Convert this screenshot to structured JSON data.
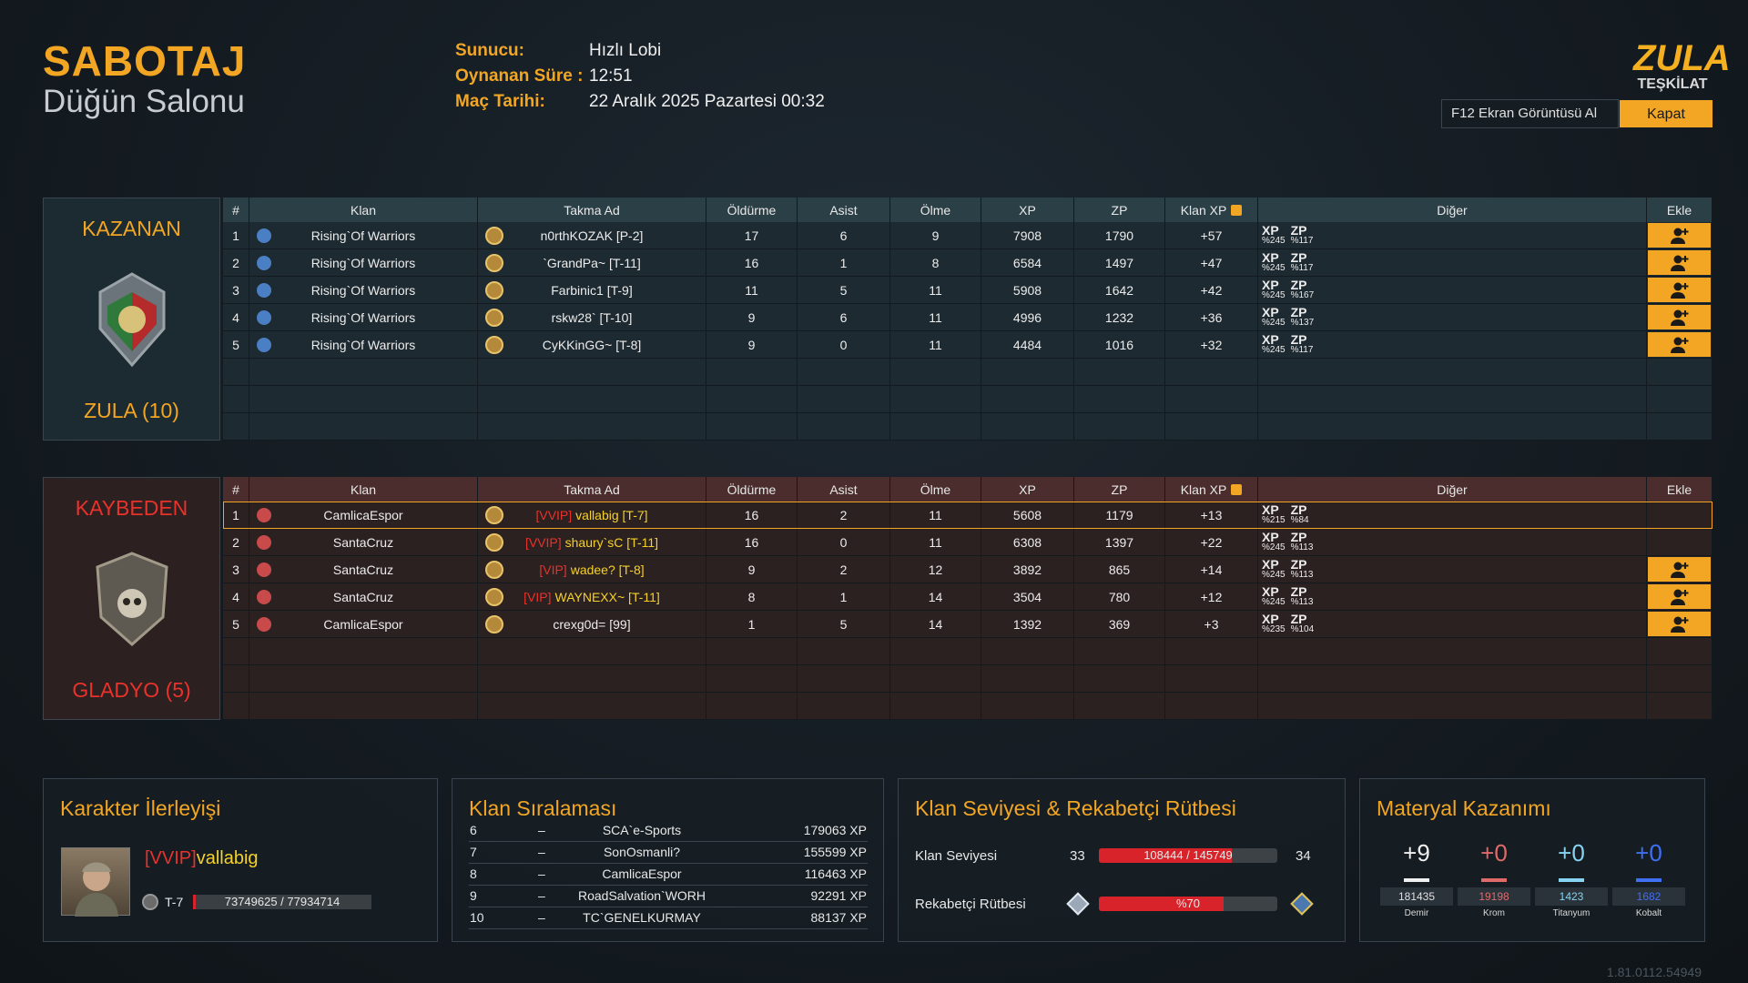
{
  "header": {
    "mode": "SABOTAJ",
    "map": "Düğün Salonu",
    "info": [
      {
        "label": "Sunucu:",
        "value": "Hızlı Lobi"
      },
      {
        "label": "Oynanan Süre :",
        "value": "12:51"
      },
      {
        "label": "Maç Tarihi:",
        "value": "22 Aralık 2025 Pazartesi 00:32"
      }
    ],
    "logo": {
      "top": "ZULA",
      "bottom": "TEŞKİLAT"
    },
    "screenshot_button": "F12 Ekran Görüntüsü Al",
    "close_button": "Kapat"
  },
  "scoreboard": {
    "columns": [
      "#",
      "Klan",
      "Takma Ad",
      "Öldürme",
      "Asist",
      "Ölme",
      "XP",
      "ZP",
      "Klan XP",
      "Diğer",
      "Ekle"
    ],
    "bonus_labels": [
      "XP",
      "ZP"
    ],
    "teams": [
      {
        "result": "KAZANAN",
        "clan": "ZULA (10)",
        "color": "#f2a623",
        "header_bg": "#2b3f47",
        "row_bg": "#1d2a31",
        "box_bg": "#1c2a31",
        "rows": [
          {
            "rank": 1,
            "clan": "Rising`Of Warriors",
            "nick": "n0rthKOZAK [P-2]",
            "kills": 17,
            "assists": 6,
            "deaths": 9,
            "xp": 7908,
            "zp": 1790,
            "clan_xp": "+57",
            "bonus": [
              "%245",
              "%117"
            ],
            "add": true
          },
          {
            "rank": 2,
            "clan": "Rising`Of Warriors",
            "nick": "`GrandPa~ [T-11]",
            "kills": 16,
            "assists": 1,
            "deaths": 8,
            "xp": 6584,
            "zp": 1497,
            "clan_xp": "+47",
            "bonus": [
              "%245",
              "%117"
            ],
            "add": true
          },
          {
            "rank": 3,
            "clan": "Rising`Of Warriors",
            "nick": "Farbinic1 [T-9]",
            "kills": 11,
            "assists": 5,
            "deaths": 11,
            "xp": 5908,
            "zp": 1642,
            "clan_xp": "+42",
            "bonus": [
              "%245",
              "%167"
            ],
            "add": true
          },
          {
            "rank": 4,
            "clan": "Rising`Of Warriors",
            "nick": "rskw28` [T-10]",
            "kills": 9,
            "assists": 6,
            "deaths": 11,
            "xp": 4996,
            "zp": 1232,
            "clan_xp": "+36",
            "bonus": [
              "%245",
              "%137"
            ],
            "add": true
          },
          {
            "rank": 5,
            "clan": "Rising`Of Warriors",
            "nick": "CyKKinGG~ [T-8]",
            "kills": 9,
            "assists": 0,
            "deaths": 11,
            "xp": 4484,
            "zp": 1016,
            "clan_xp": "+32",
            "bonus": [
              "%245",
              "%117"
            ],
            "add": true
          }
        ]
      },
      {
        "result": "KAYBEDEN",
        "clan": "GLADYO (5)",
        "color": "#e8322b",
        "header_bg": "#4a2d2c",
        "row_bg": "#2c2121",
        "box_bg": "#2c2020",
        "rows": [
          {
            "rank": 1,
            "clan": "CamlicaEspor",
            "vip": "[VVIP]",
            "nick": "vallabig [T-7]",
            "kills": 16,
            "assists": 2,
            "deaths": 11,
            "xp": 5608,
            "zp": 1179,
            "clan_xp": "+13",
            "bonus": [
              "%215",
              "%84"
            ],
            "add": false,
            "highlight": true
          },
          {
            "rank": 2,
            "clan": "SantaCruz",
            "vip": "[VVIP]",
            "nick": "shaury`sC [T-11]",
            "kills": 16,
            "assists": 0,
            "deaths": 11,
            "xp": 6308,
            "zp": 1397,
            "clan_xp": "+22",
            "bonus": [
              "%245",
              "%113"
            ],
            "add": false
          },
          {
            "rank": 3,
            "clan": "SantaCruz",
            "vip": "[VIP]",
            "nick": "wadee? [T-8]",
            "kills": 9,
            "assists": 2,
            "deaths": 12,
            "xp": 3892,
            "zp": 865,
            "clan_xp": "+14",
            "bonus": [
              "%245",
              "%113"
            ],
            "add": true
          },
          {
            "rank": 4,
            "clan": "SantaCruz",
            "vip": "[VIP]",
            "nick": "WAYNEXX~ [T-11]",
            "kills": 8,
            "assists": 1,
            "deaths": 14,
            "xp": 3504,
            "zp": 780,
            "clan_xp": "+12",
            "bonus": [
              "%245",
              "%113"
            ],
            "add": true
          },
          {
            "rank": 5,
            "clan": "CamlicaEspor",
            "nick": "crexg0d= [99]",
            "kills": 1,
            "assists": 5,
            "deaths": 14,
            "xp": 1392,
            "zp": 369,
            "clan_xp": "+3",
            "bonus": [
              "%235",
              "%104"
            ],
            "add": true
          }
        ]
      }
    ]
  },
  "progress": {
    "title": "Karakter İlerleyişi",
    "vip": "[VVIP]",
    "name": "vallabig",
    "rank": "T-7",
    "xp_label": "73749625 / 77934714",
    "xp": 73749625,
    "xp_max": 77934714
  },
  "clan_ranking": {
    "title": "Klan Sıralaması",
    "rows": [
      {
        "rank": 6,
        "sep": "–",
        "clan": "SCA`e-Sports",
        "xp": "179063 XP"
      },
      {
        "rank": 7,
        "sep": "–",
        "clan": "SonOsmanli?",
        "xp": "155599 XP"
      },
      {
        "rank": 8,
        "sep": "–",
        "clan": "CamlicaEspor",
        "xp": "116463 XP"
      },
      {
        "rank": 9,
        "sep": "–",
        "clan": "RoadSalvation`WORH",
        "xp": "92291 XP"
      },
      {
        "rank": 10,
        "sep": "–",
        "clan": "TC`GENELKURMAY",
        "xp": "88137 XP"
      }
    ]
  },
  "clan_level": {
    "title": "Klan Seviyesi & Rekabetçi Rütbesi",
    "level_label": "Klan Seviyesi",
    "level": 33,
    "next_level": 34,
    "xp_label": "108444 / 145749",
    "xp": 108444,
    "xp_max": 145749,
    "rank_label": "Rekabetçi Rütbesi",
    "rank_percent_label": "%70",
    "rank_percent": 70
  },
  "materials": {
    "title": "Materyal Kazanımı",
    "items": [
      {
        "gain": "+9",
        "total": 181435,
        "name": "Demir",
        "color": "#f0f0f0"
      },
      {
        "gain": "+0",
        "total": 19198,
        "name": "Krom",
        "color": "#e06a6a"
      },
      {
        "gain": "+0",
        "total": 1423,
        "name": "Titanyum",
        "color": "#86d3f2"
      },
      {
        "gain": "+0",
        "total": 1682,
        "name": "Kobalt",
        "color": "#3f6ff2"
      }
    ]
  },
  "version": "1.81.0112.54949"
}
